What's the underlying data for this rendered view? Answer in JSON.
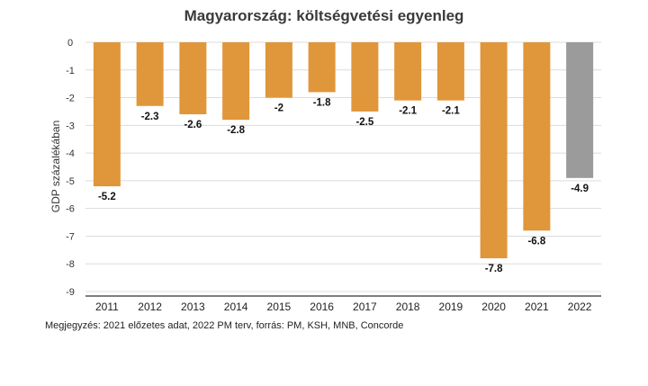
{
  "chart_data": {
    "type": "bar",
    "title": "Magyarország: költségvetési egyenleg",
    "ylabel": "GDP százalékában",
    "xlabel": "",
    "ylim": [
      -9,
      0
    ],
    "yticks": [
      "0",
      "-1",
      "-2",
      "-3",
      "-4",
      "-5",
      "-6",
      "-7",
      "-8",
      "-9"
    ],
    "categories": [
      "2011",
      "2012",
      "2013",
      "2014",
      "2015",
      "2016",
      "2017",
      "2018",
      "2019",
      "2020",
      "2021",
      "2022"
    ],
    "values": [
      -5.2,
      -2.3,
      -2.6,
      -2.8,
      -2,
      -1.8,
      -2.5,
      -2.1,
      -2.1,
      -7.8,
      -6.8,
      -4.9
    ],
    "value_labels": [
      "-5.2",
      "-2.3",
      "-2.6",
      "-2.8",
      "-2",
      "-1.8",
      "-2.5",
      "-2.1",
      "-2.1",
      "-7.8",
      "-6.8",
      "-4.9"
    ],
    "colors": {
      "actual": "#e0963a",
      "plan": "#9b9b9b",
      "grid": "#dcdcdc",
      "axis": "#555555"
    },
    "highlight_last": true,
    "grid": true
  },
  "note": "Megjegyzés: 2021 előzetes adat, 2022 PM terv, forrás: PM, KSH, MNB, Concorde"
}
